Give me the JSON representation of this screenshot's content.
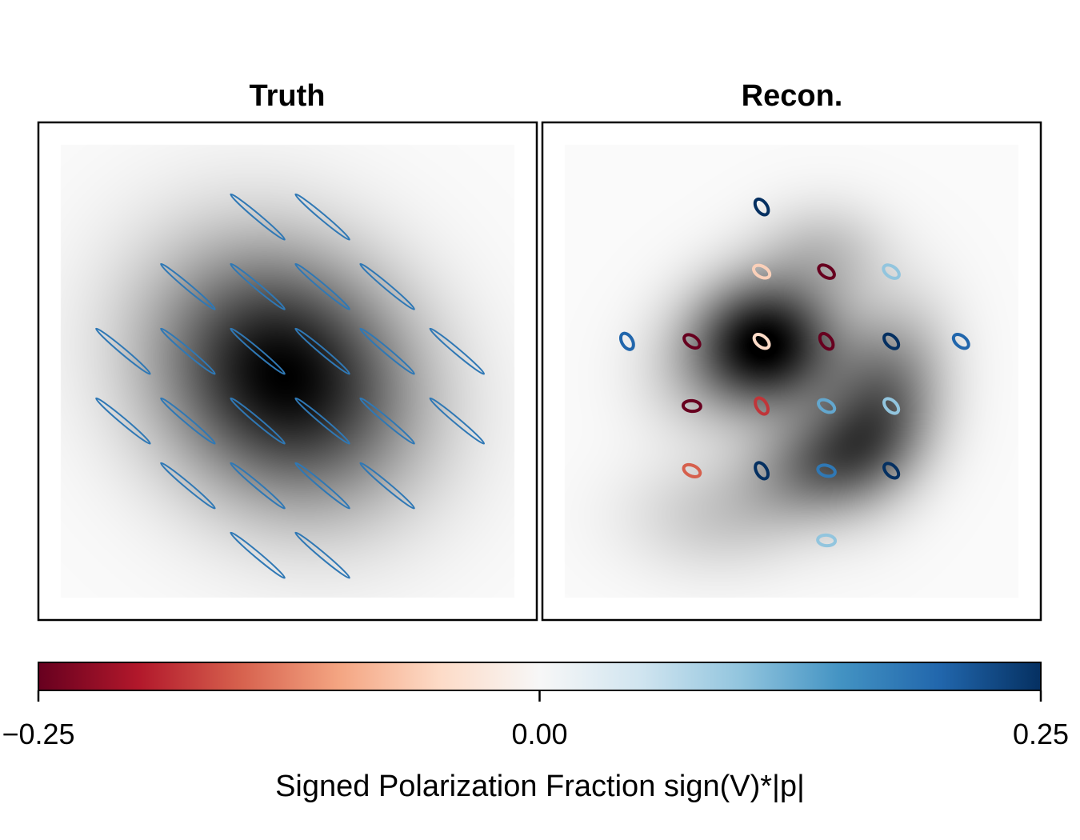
{
  "chart_data": [
    {
      "type": "heatmap",
      "title": "Truth",
      "image": {
        "blobs": [
          {
            "cx": 0.49,
            "cy": 0.51,
            "sx": 0.21,
            "sy": 0.18,
            "rot": 40,
            "amp": 1.0
          }
        ],
        "extent": [
          0,
          1
        ]
      },
      "polarization_ticks": {
        "grid": {
          "cols": [
            0.17,
            0.3,
            0.44,
            0.57,
            0.7,
            0.84
          ],
          "rows": [
            0.19,
            0.33,
            0.46,
            0.6,
            0.73,
            0.87
          ]
        },
        "points": [
          {
            "col": 2,
            "row": 0,
            "frac": 0.18,
            "angle": 40,
            "elong": 0.08
          },
          {
            "col": 3,
            "row": 0,
            "frac": 0.18,
            "angle": 40,
            "elong": 0.08
          },
          {
            "col": 1,
            "row": 1,
            "frac": 0.18,
            "angle": 40,
            "elong": 0.08
          },
          {
            "col": 2,
            "row": 1,
            "frac": 0.18,
            "angle": 40,
            "elong": 0.08
          },
          {
            "col": 3,
            "row": 1,
            "frac": 0.18,
            "angle": 40,
            "elong": 0.08
          },
          {
            "col": 4,
            "row": 1,
            "frac": 0.18,
            "angle": 40,
            "elong": 0.08
          },
          {
            "col": 0,
            "row": 2,
            "frac": 0.18,
            "angle": 40,
            "elong": 0.08
          },
          {
            "col": 1,
            "row": 2,
            "frac": 0.18,
            "angle": 40,
            "elong": 0.08
          },
          {
            "col": 2,
            "row": 2,
            "frac": 0.18,
            "angle": 40,
            "elong": 0.08
          },
          {
            "col": 3,
            "row": 2,
            "frac": 0.18,
            "angle": 40,
            "elong": 0.08
          },
          {
            "col": 4,
            "row": 2,
            "frac": 0.18,
            "angle": 40,
            "elong": 0.08
          },
          {
            "col": 5,
            "row": 2,
            "frac": 0.18,
            "angle": 40,
            "elong": 0.08
          },
          {
            "col": 0,
            "row": 3,
            "frac": 0.18,
            "angle": 40,
            "elong": 0.08
          },
          {
            "col": 1,
            "row": 3,
            "frac": 0.18,
            "angle": 40,
            "elong": 0.08
          },
          {
            "col": 2,
            "row": 3,
            "frac": 0.18,
            "angle": 40,
            "elong": 0.08
          },
          {
            "col": 3,
            "row": 3,
            "frac": 0.18,
            "angle": 40,
            "elong": 0.08
          },
          {
            "col": 4,
            "row": 3,
            "frac": 0.18,
            "angle": 40,
            "elong": 0.08
          },
          {
            "col": 5,
            "row": 3,
            "frac": 0.18,
            "angle": 40,
            "elong": 0.08
          },
          {
            "col": 1,
            "row": 4,
            "frac": 0.18,
            "angle": 40,
            "elong": 0.08
          },
          {
            "col": 2,
            "row": 4,
            "frac": 0.18,
            "angle": 40,
            "elong": 0.08
          },
          {
            "col": 3,
            "row": 4,
            "frac": 0.18,
            "angle": 40,
            "elong": 0.08
          },
          {
            "col": 4,
            "row": 4,
            "frac": 0.18,
            "angle": 40,
            "elong": 0.08
          },
          {
            "col": 2,
            "row": 5,
            "frac": 0.18,
            "angle": 40,
            "elong": 0.08
          },
          {
            "col": 3,
            "row": 5,
            "frac": 0.18,
            "angle": 40,
            "elong": 0.08
          }
        ]
      }
    },
    {
      "type": "heatmap",
      "title": "Recon.",
      "image": {
        "blobs": [
          {
            "cx": 0.44,
            "cy": 0.44,
            "sx": 0.11,
            "sy": 0.1,
            "rot": 0,
            "amp": 1.0
          },
          {
            "cx": 0.57,
            "cy": 0.24,
            "sx": 0.1,
            "sy": 0.08,
            "rot": 0,
            "amp": 0.22
          },
          {
            "cx": 0.7,
            "cy": 0.57,
            "sx": 0.09,
            "sy": 0.14,
            "rot": 15,
            "amp": 0.55
          },
          {
            "cx": 0.57,
            "cy": 0.7,
            "sx": 0.12,
            "sy": 0.08,
            "rot": -20,
            "amp": 0.5
          },
          {
            "cx": 0.33,
            "cy": 0.82,
            "sx": 0.14,
            "sy": 0.09,
            "rot": 0,
            "amp": 0.18
          },
          {
            "cx": 0.28,
            "cy": 0.52,
            "sx": 0.1,
            "sy": 0.1,
            "rot": 0,
            "amp": 0.12
          }
        ],
        "extent": [
          0,
          1
        ]
      },
      "polarization_ticks": {
        "grid": {
          "cols": [
            0.17,
            0.3,
            0.44,
            0.57,
            0.7,
            0.84
          ],
          "rows": [
            0.17,
            0.3,
            0.44,
            0.57,
            0.7,
            0.84
          ]
        },
        "points": [
          {
            "col": 2,
            "row": 0,
            "frac": 0.25,
            "angle": 55,
            "elong": 0.6
          },
          {
            "col": 2,
            "row": 1,
            "frac": -0.06,
            "angle": 30,
            "elong": 0.6
          },
          {
            "col": 3,
            "row": 1,
            "frac": -0.25,
            "angle": 35,
            "elong": 0.6
          },
          {
            "col": 4,
            "row": 1,
            "frac": 0.1,
            "angle": 35,
            "elong": 0.6
          },
          {
            "col": 0,
            "row": 2,
            "frac": 0.2,
            "angle": 60,
            "elong": 0.6
          },
          {
            "col": 1,
            "row": 2,
            "frac": -0.25,
            "angle": 35,
            "elong": 0.6
          },
          {
            "col": 2,
            "row": 2,
            "frac": -0.05,
            "angle": 40,
            "elong": 0.6
          },
          {
            "col": 3,
            "row": 2,
            "frac": -0.25,
            "angle": 55,
            "elong": 0.6
          },
          {
            "col": 4,
            "row": 2,
            "frac": 0.25,
            "angle": 45,
            "elong": 0.6
          },
          {
            "col": 5,
            "row": 2,
            "frac": 0.2,
            "angle": 40,
            "elong": 0.6
          },
          {
            "col": 1,
            "row": 3,
            "frac": -0.25,
            "angle": 5,
            "elong": 0.6
          },
          {
            "col": 2,
            "row": 3,
            "frac": -0.18,
            "angle": 60,
            "elong": 0.6
          },
          {
            "col": 3,
            "row": 3,
            "frac": 0.13,
            "angle": 30,
            "elong": 0.6
          },
          {
            "col": 4,
            "row": 3,
            "frac": 0.1,
            "angle": 45,
            "elong": 0.6
          },
          {
            "col": 1,
            "row": 4,
            "frac": -0.15,
            "angle": 25,
            "elong": 0.6
          },
          {
            "col": 2,
            "row": 4,
            "frac": 0.25,
            "angle": 60,
            "elong": 0.6
          },
          {
            "col": 3,
            "row": 4,
            "frac": 0.18,
            "angle": 15,
            "elong": 0.6
          },
          {
            "col": 4,
            "row": 4,
            "frac": 0.25,
            "angle": 45,
            "elong": 0.6
          },
          {
            "col": 3,
            "row": 5,
            "frac": 0.1,
            "angle": 5,
            "elong": 0.6
          }
        ]
      }
    }
  ],
  "colorbar": {
    "colormap": "RdBu",
    "stops": [
      "#67001f",
      "#b2182b",
      "#d6604d",
      "#f4a582",
      "#fddbc7",
      "#f7f7f7",
      "#d1e5f0",
      "#92c5de",
      "#4393c3",
      "#2166ac",
      "#053061"
    ],
    "range": [
      -0.25,
      0.25
    ],
    "tick_values": [
      -0.25,
      0.0,
      0.25
    ],
    "tick_labels": [
      "−0.25",
      "0.00",
      "0.25"
    ],
    "label": "Signed Polarization Fraction sign(V)*|p|"
  }
}
